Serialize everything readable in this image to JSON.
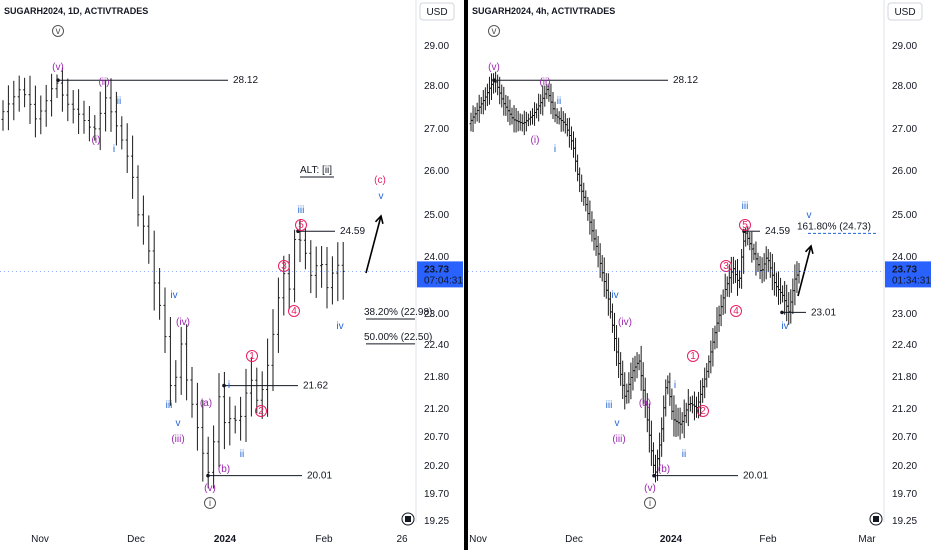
{
  "colors": {
    "bar": "#1a1a1a",
    "purple": "#9c27b0",
    "blue": "#1e63d6",
    "pink": "#e91e63",
    "price_badge": "#2962ff",
    "grid_line": "#131722"
  },
  "panels": [
    {
      "id": "left",
      "title": "SUGARH2024, 1D, ACTIVTRADES",
      "currency": "USD",
      "x_ticks": [
        {
          "label": "Nov",
          "bold": false
        },
        {
          "label": "Dec",
          "bold": false
        },
        {
          "label": "2024",
          "bold": true
        },
        {
          "label": "Feb",
          "bold": false
        },
        {
          "label": "26",
          "bold": false
        }
      ],
      "price_badge": {
        "price": "23.73",
        "time": "07:04:31"
      },
      "levels": [
        {
          "label": "28.12",
          "value": 28.12
        },
        {
          "label": "24.59",
          "value": 24.59
        },
        {
          "label": "21.62",
          "value": 21.62
        },
        {
          "label": "20.01",
          "value": 20.01
        }
      ],
      "fib_levels": [
        {
          "label": "38.20% (22.98)",
          "value": 22.98
        },
        {
          "label": "50.00% (22.50)",
          "value": 22.5
        }
      ],
      "note": "ALT: [ii]",
      "labels": [
        {
          "text": "v",
          "color": "gray",
          "circled": true
        },
        {
          "text": "(v)",
          "color": "purple"
        },
        {
          "text": "(ii)",
          "color": "purple"
        },
        {
          "text": "ii",
          "color": "blue"
        },
        {
          "text": "(i)",
          "color": "purple"
        },
        {
          "text": "i",
          "color": "blue"
        },
        {
          "text": "(c)",
          "color": "pink"
        },
        {
          "text": "v",
          "color": "blue"
        },
        {
          "text": "iii",
          "color": "blue"
        },
        {
          "text": "5",
          "color": "pink",
          "circled": true
        },
        {
          "text": "3",
          "color": "pink",
          "circled": true
        },
        {
          "text": "4",
          "color": "pink",
          "circled": true
        },
        {
          "text": "iv",
          "color": "blue"
        },
        {
          "text": "iv",
          "color": "blue"
        },
        {
          "text": "(iv)",
          "color": "purple"
        },
        {
          "text": "1",
          "color": "pink",
          "circled": true
        },
        {
          "text": "i",
          "color": "blue"
        },
        {
          "text": "2",
          "color": "pink",
          "circled": true
        },
        {
          "text": "iii",
          "color": "blue"
        },
        {
          "text": "(a)",
          "color": "purple"
        },
        {
          "text": "v",
          "color": "blue"
        },
        {
          "text": "(iii)",
          "color": "purple"
        },
        {
          "text": "ii",
          "color": "blue"
        },
        {
          "text": "(b)",
          "color": "purple"
        },
        {
          "text": "(v)",
          "color": "purple"
        },
        {
          "text": "i",
          "color": "gray",
          "circled": true
        }
      ]
    },
    {
      "id": "right",
      "title": "SUGARH2024, 4h, ACTIVTRADES",
      "currency": "USD",
      "x_ticks": [
        {
          "label": "Nov",
          "bold": false
        },
        {
          "label": "Dec",
          "bold": false
        },
        {
          "label": "2024",
          "bold": true
        },
        {
          "label": "Feb",
          "bold": false
        },
        {
          "label": "Mar",
          "bold": false
        }
      ],
      "price_badge": {
        "price": "23.73",
        "time": "01:34:31"
      },
      "levels": [
        {
          "label": "28.12",
          "value": 28.12
        },
        {
          "label": "24.59",
          "value": 24.59
        },
        {
          "label": "23.01",
          "value": 23.01
        },
        {
          "label": "20.01",
          "value": 20.01
        }
      ],
      "fib_levels": [
        {
          "label": "161.80% (24.73)",
          "value": 24.73
        }
      ],
      "labels": [
        {
          "text": "v",
          "color": "gray",
          "circled": true
        },
        {
          "text": "(v)",
          "color": "purple"
        },
        {
          "text": "(ii)",
          "color": "purple"
        },
        {
          "text": "ii",
          "color": "blue"
        },
        {
          "text": "(i)",
          "color": "purple"
        },
        {
          "text": "i",
          "color": "blue"
        },
        {
          "text": "v",
          "color": "blue"
        },
        {
          "text": "iii",
          "color": "blue"
        },
        {
          "text": "5",
          "color": "pink",
          "circled": true
        },
        {
          "text": "3",
          "color": "pink",
          "circled": true
        },
        {
          "text": "4",
          "color": "pink",
          "circled": true
        },
        {
          "text": "iv",
          "color": "blue"
        },
        {
          "text": "iv",
          "color": "blue"
        },
        {
          "text": "(iv)",
          "color": "purple"
        },
        {
          "text": "1",
          "color": "pink",
          "circled": true
        },
        {
          "text": "i",
          "color": "blue"
        },
        {
          "text": "2",
          "color": "pink",
          "circled": true
        },
        {
          "text": "iii",
          "color": "blue"
        },
        {
          "text": "(a)",
          "color": "purple"
        },
        {
          "text": "v",
          "color": "blue"
        },
        {
          "text": "(iii)",
          "color": "purple"
        },
        {
          "text": "ii",
          "color": "blue"
        },
        {
          "text": "(b)",
          "color": "purple"
        },
        {
          "text": "(v)",
          "color": "purple"
        },
        {
          "text": "i",
          "color": "gray",
          "circled": true
        }
      ]
    }
  ],
  "chart_data": [
    {
      "type": "ohlc",
      "title": "SUGARH2024, 1D, ACTIVTRADES",
      "ylabel": "USD",
      "y_ticks": [
        29.0,
        28.0,
        27.0,
        26.0,
        25.0,
        24.0,
        23.0,
        22.4,
        21.8,
        21.2,
        20.7,
        20.2,
        19.7,
        19.25
      ],
      "ylim": [
        19.25,
        29.4
      ],
      "x_ticks": [
        "Nov",
        "Dec",
        "2024",
        "Feb",
        "26"
      ],
      "last_price": 23.73,
      "path": [
        [
          0,
          27.2
        ],
        [
          12,
          27.6
        ],
        [
          22,
          27.9
        ],
        [
          30,
          27.7
        ],
        [
          38,
          27.2
        ],
        [
          46,
          27.5
        ],
        [
          58,
          28.12
        ],
        [
          68,
          27.6
        ],
        [
          82,
          27.3
        ],
        [
          96,
          26.9
        ],
        [
          108,
          27.7
        ],
        [
          118,
          27.1
        ],
        [
          126,
          26.6
        ],
        [
          134,
          26.0
        ],
        [
          140,
          25.0
        ],
        [
          148,
          24.6
        ],
        [
          154,
          23.7
        ],
        [
          160,
          23.3
        ],
        [
          166,
          22.8
        ],
        [
          172,
          21.7
        ],
        [
          176,
          21.3
        ],
        [
          182,
          22.6
        ],
        [
          190,
          21.6
        ],
        [
          198,
          21.0
        ],
        [
          204,
          20.5
        ],
        [
          210,
          20.01
        ],
        [
          216,
          20.6
        ],
        [
          222,
          21.5
        ],
        [
          228,
          20.8
        ],
        [
          234,
          21.1
        ],
        [
          240,
          20.9
        ],
        [
          246,
          21.2
        ],
        [
          252,
          21.9
        ],
        [
          258,
          21.3
        ],
        [
          266,
          21.6
        ],
        [
          274,
          22.4
        ],
        [
          280,
          23.2
        ],
        [
          286,
          23.7
        ],
        [
          292,
          23.4
        ],
        [
          298,
          24.59
        ],
        [
          306,
          24.2
        ],
        [
          314,
          23.6
        ],
        [
          322,
          24.0
        ],
        [
          330,
          23.4
        ],
        [
          338,
          23.9
        ],
        [
          344,
          23.73
        ]
      ]
    },
    {
      "type": "ohlc",
      "title": "SUGARH2024, 4h, ACTIVTRADES",
      "ylabel": "USD",
      "y_ticks": [
        29.0,
        28.0,
        27.0,
        26.0,
        25.0,
        24.0,
        23.0,
        22.4,
        21.8,
        21.2,
        20.7,
        20.2,
        19.7,
        19.25
      ],
      "ylim": [
        19.25,
        29.4
      ],
      "x_ticks": [
        "Nov",
        "Dec",
        "2024",
        "Feb",
        "Mar"
      ],
      "last_price": 23.73,
      "path": [
        [
          0,
          27.1
        ],
        [
          8,
          27.4
        ],
        [
          16,
          27.7
        ],
        [
          22,
          28.0
        ],
        [
          26,
          28.12
        ],
        [
          34,
          27.6
        ],
        [
          44,
          27.2
        ],
        [
          54,
          27.1
        ],
        [
          64,
          27.3
        ],
        [
          72,
          27.6
        ],
        [
          78,
          27.9
        ],
        [
          86,
          27.3
        ],
        [
          96,
          27.1
        ],
        [
          104,
          26.6
        ],
        [
          110,
          25.7
        ],
        [
          116,
          25.3
        ],
        [
          124,
          24.5
        ],
        [
          132,
          23.8
        ],
        [
          140,
          23.2
        ],
        [
          148,
          22.2
        ],
        [
          156,
          21.4
        ],
        [
          164,
          21.9
        ],
        [
          170,
          22.1
        ],
        [
          176,
          21.3
        ],
        [
          182,
          20.5
        ],
        [
          186,
          20.01
        ],
        [
          192,
          20.7
        ],
        [
          198,
          21.8
        ],
        [
          204,
          21.0
        ],
        [
          212,
          20.9
        ],
        [
          220,
          21.3
        ],
        [
          228,
          21.2
        ],
        [
          238,
          21.9
        ],
        [
          248,
          22.8
        ],
        [
          256,
          23.4
        ],
        [
          264,
          23.8
        ],
        [
          270,
          23.5
        ],
        [
          276,
          24.59
        ],
        [
          284,
          24.1
        ],
        [
          292,
          23.7
        ],
        [
          298,
          24.0
        ],
        [
          306,
          23.5
        ],
        [
          314,
          23.3
        ],
        [
          320,
          23.01
        ],
        [
          326,
          23.6
        ],
        [
          330,
          23.73
        ]
      ]
    }
  ]
}
